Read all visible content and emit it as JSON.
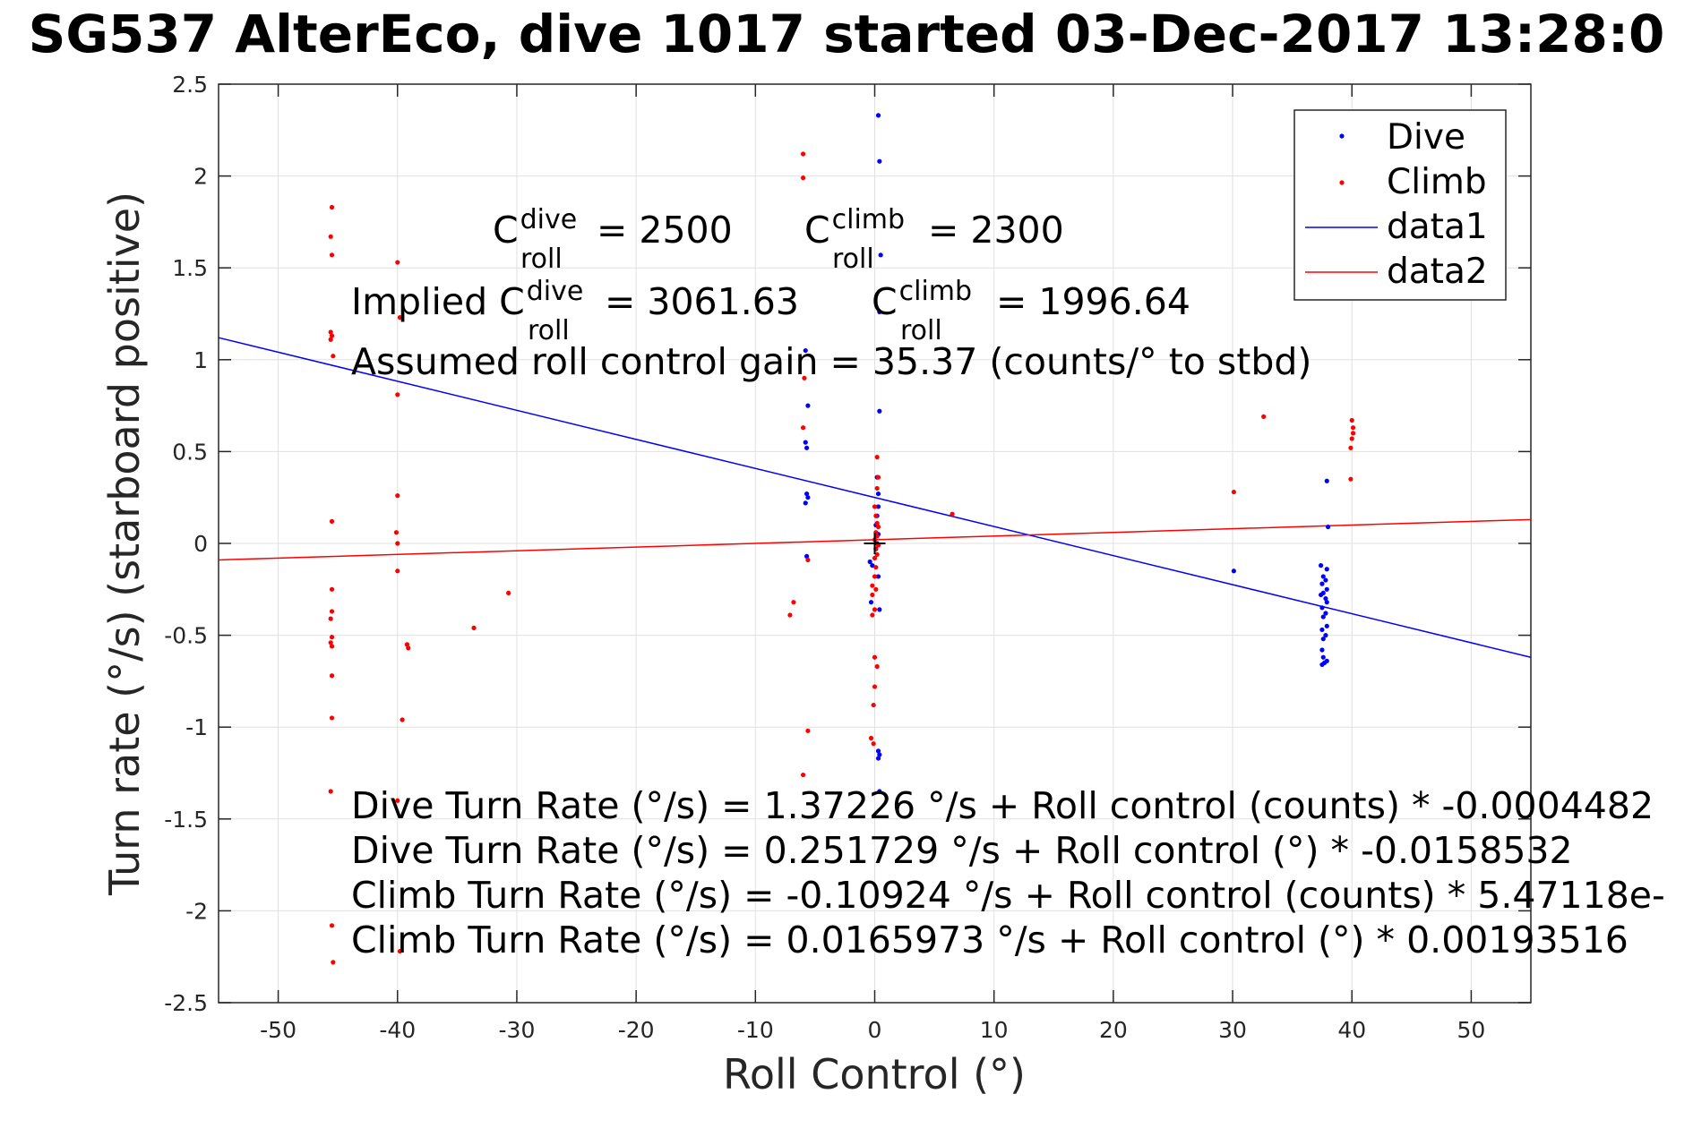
{
  "chart_data": {
    "type": "scatter",
    "title": "SG537 AlterEco, dive 1017 started 03-Dec-2017 13:28:0",
    "xlabel": "Roll Control (°)",
    "ylabel": "Turn rate (°/s) (starboard positive)",
    "xlim": [
      -55,
      55
    ],
    "ylim": [
      -2.5,
      2.5
    ],
    "xticks": [
      "-50",
      "-40",
      "-30",
      "-20",
      "-10",
      "0",
      "10",
      "20",
      "30",
      "40",
      "50"
    ],
    "yticks": [
      "2.5",
      "2",
      "1.5",
      "1",
      "0.5",
      "0",
      "-0.5",
      "-1",
      "-1.5",
      "-2",
      "-2.5"
    ],
    "grid": true,
    "legend_position": "top-right",
    "colors": {
      "dive": "#0000ff",
      "climb": "#ff0000",
      "origin_marker": "#000000",
      "axes": "#262626",
      "grid": "#e0e0e0"
    },
    "series": [
      {
        "name": "Dive",
        "marker": "dot",
        "points": [
          [
            0.3,
            2.33
          ],
          [
            0.4,
            2.08
          ],
          [
            0.5,
            1.57
          ],
          [
            0.4,
            1.26
          ],
          [
            -5.8,
            1.05
          ],
          [
            -5.6,
            0.75
          ],
          [
            -5.8,
            0.55
          ],
          [
            -5.7,
            0.52
          ],
          [
            0.4,
            0.72
          ],
          [
            -5.7,
            0.27
          ],
          [
            -5.6,
            0.25
          ],
          [
            -5.8,
            0.22
          ],
          [
            -5.7,
            -0.07
          ],
          [
            0.2,
            0.36
          ],
          [
            0.3,
            0.27
          ],
          [
            0.3,
            0.2
          ],
          [
            0.2,
            0.15
          ],
          [
            0.1,
            0.1
          ],
          [
            0.3,
            0.05
          ],
          [
            0.2,
            0.0
          ],
          [
            0.1,
            -0.03
          ],
          [
            -0.4,
            -0.1
          ],
          [
            -0.2,
            -0.12
          ],
          [
            0.3,
            -0.18
          ],
          [
            -0.3,
            -0.32
          ],
          [
            0.4,
            -0.36
          ],
          [
            0.3,
            -1.13
          ],
          [
            0.4,
            -1.15
          ],
          [
            0.3,
            -1.17
          ],
          [
            0.4,
            -1.35
          ],
          [
            30.1,
            -0.15
          ],
          [
            37.9,
            0.34
          ],
          [
            38.0,
            0.09
          ],
          [
            37.4,
            -0.12
          ],
          [
            37.9,
            -0.14
          ],
          [
            37.6,
            -0.18
          ],
          [
            37.8,
            -0.2
          ],
          [
            37.5,
            -0.22
          ],
          [
            37.9,
            -0.25
          ],
          [
            37.6,
            -0.27
          ],
          [
            37.4,
            -0.28
          ],
          [
            37.8,
            -0.3
          ],
          [
            37.9,
            -0.32
          ],
          [
            37.5,
            -0.35
          ],
          [
            37.8,
            -0.38
          ],
          [
            37.6,
            -0.4
          ],
          [
            37.9,
            -0.45
          ],
          [
            37.5,
            -0.47
          ],
          [
            37.8,
            -0.5
          ],
          [
            37.6,
            -0.52
          ],
          [
            37.5,
            -0.58
          ],
          [
            37.6,
            -0.62
          ],
          [
            37.9,
            -0.64
          ],
          [
            37.7,
            -0.65
          ],
          [
            37.5,
            -0.66
          ]
        ]
      },
      {
        "name": "Climb",
        "marker": "dot",
        "points": [
          [
            -45.5,
            1.83
          ],
          [
            -45.6,
            1.67
          ],
          [
            -45.5,
            1.57
          ],
          [
            -45.6,
            1.15
          ],
          [
            -45.5,
            1.13
          ],
          [
            -45.6,
            1.11
          ],
          [
            -45.4,
            1.02
          ],
          [
            -45.5,
            0.12
          ],
          [
            -45.5,
            -0.25
          ],
          [
            -45.5,
            -0.37
          ],
          [
            -45.6,
            -0.41
          ],
          [
            -45.5,
            -0.51
          ],
          [
            -45.6,
            -0.54
          ],
          [
            -45.5,
            -0.56
          ],
          [
            -45.5,
            -0.72
          ],
          [
            -45.5,
            -0.95
          ],
          [
            -45.6,
            -1.35
          ],
          [
            -45.5,
            -2.08
          ],
          [
            -45.4,
            -2.28
          ],
          [
            -40.0,
            1.53
          ],
          [
            -39.8,
            1.23
          ],
          [
            -40.0,
            0.81
          ],
          [
            -40.0,
            0.26
          ],
          [
            -40.1,
            0.06
          ],
          [
            -40.0,
            0.0
          ],
          [
            -40.0,
            -0.15
          ],
          [
            -39.6,
            -0.96
          ],
          [
            -39.2,
            -0.55
          ],
          [
            -39.1,
            -0.57
          ],
          [
            -40.0,
            -1.4
          ],
          [
            -39.8,
            -2.22
          ],
          [
            -30.7,
            -0.27
          ],
          [
            -33.6,
            -0.46
          ],
          [
            -6.0,
            2.12
          ],
          [
            -6.0,
            1.99
          ],
          [
            -5.9,
            0.9
          ],
          [
            -6.0,
            0.63
          ],
          [
            -6.8,
            -0.32
          ],
          [
            -7.1,
            -0.39
          ],
          [
            -5.6,
            -1.02
          ],
          [
            -6.0,
            -1.26
          ],
          [
            -5.6,
            -0.09
          ],
          [
            0.2,
            0.47
          ],
          [
            0.3,
            0.36
          ],
          [
            0.2,
            0.3
          ],
          [
            0.0,
            0.2
          ],
          [
            0.1,
            0.15
          ],
          [
            0.2,
            0.11
          ],
          [
            0.3,
            0.09
          ],
          [
            0.1,
            0.06
          ],
          [
            0.2,
            0.04
          ],
          [
            0.0,
            0.02
          ],
          [
            0.3,
            -0.01
          ],
          [
            0.1,
            -0.03
          ],
          [
            0.2,
            -0.06
          ],
          [
            0.0,
            -0.08
          ],
          [
            0.1,
            -0.13
          ],
          [
            0.0,
            -0.18
          ],
          [
            -0.2,
            -0.23
          ],
          [
            0.1,
            -0.25
          ],
          [
            -0.2,
            -0.28
          ],
          [
            0.0,
            -0.36
          ],
          [
            -0.2,
            -0.39
          ],
          [
            0.0,
            -0.62
          ],
          [
            0.2,
            -0.67
          ],
          [
            0.0,
            -0.78
          ],
          [
            -0.1,
            -0.88
          ],
          [
            -0.3,
            -1.06
          ],
          [
            -0.1,
            -1.09
          ],
          [
            6.5,
            0.16
          ],
          [
            30.1,
            0.28
          ],
          [
            32.6,
            0.69
          ],
          [
            40.0,
            0.67
          ],
          [
            40.1,
            0.63
          ],
          [
            40.1,
            0.6
          ],
          [
            40.0,
            0.57
          ],
          [
            39.9,
            0.52
          ],
          [
            39.9,
            0.35
          ]
        ]
      },
      {
        "name": "data1",
        "type": "line",
        "x": [
          -55,
          55
        ],
        "y": [
          1.12,
          -0.62
        ]
      },
      {
        "name": "data2",
        "type": "line",
        "x": [
          -55,
          55
        ],
        "y": [
          -0.09,
          0.13
        ]
      }
    ],
    "origin_marker": [
      0,
      0
    ],
    "annotations": {
      "c_dive_label": "C",
      "c_dive_sup": "dive",
      "c_dive_sub": "roll",
      "c_dive_value": "= 2500",
      "c_climb_label": "C",
      "c_climb_sup": "climb",
      "c_climb_sub": "roll",
      "c_climb_value": "= 2300",
      "implied_label": "Implied C",
      "implied_dive_sup": "dive",
      "implied_dive_sub": "roll",
      "implied_dive_value": "= 3061.63",
      "implied_climb_label": "C",
      "implied_climb_sup": "climb",
      "implied_climb_sub": "roll",
      "implied_climb_value": "= 1996.64",
      "gain": "Assumed roll control gain = 35.37 (counts/° to stbd)",
      "eq1": "Dive Turn Rate (°/s) = 1.37226 °/s + Roll control (counts) * -0.0004482",
      "eq2": "Dive Turn Rate (°/s) = 0.251729 °/s + Roll control (°) * -0.0158532",
      "eq3": "Climb Turn Rate (°/s) = -0.10924 °/s + Roll control (counts) * 5.47118e-",
      "eq4": "Climb Turn Rate (°/s) = 0.0165973 °/s + Roll control (°) * 0.00193516"
    }
  }
}
